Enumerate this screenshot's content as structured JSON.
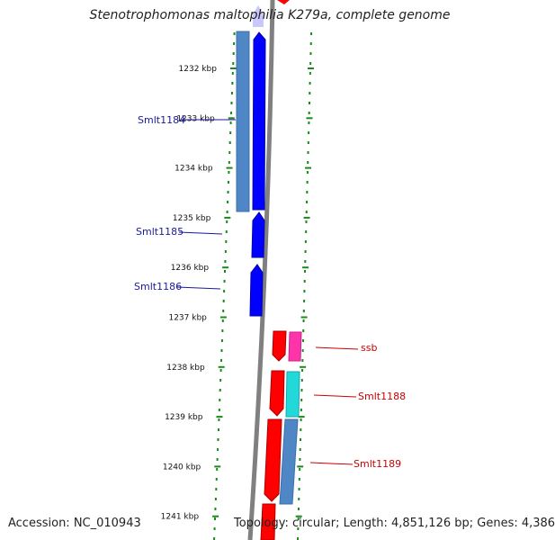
{
  "title": "Stenotrophomonas maltophilia K279a, complete genome",
  "footer": {
    "accession": "Accession: NC_010943",
    "summary": "Topology: circular; Length: 4,851,126 bp; Genes: 4,386"
  },
  "colors": {
    "background": "#ffffff",
    "backbone": "#888888",
    "tick_green": "#1a8a1a",
    "forward_gene": "#0000ff",
    "forward_gene_other": "#4f86c6",
    "reverse_gene": "#ff0000",
    "reverse_gene_pink": "#ff33aa",
    "reverse_gene_cyan": "#22d8d8",
    "reverse_gene_steel": "#4f86c6",
    "label_forward": "#1a1a9a",
    "label_reverse": "#cc0000",
    "top_partial": "#c8c8ff"
  },
  "scale": {
    "unit": "kbp",
    "ticks": [
      "1232 kbp",
      "1233 kbp",
      "1234 kbp",
      "1235 kbp",
      "1236 kbp",
      "1237 kbp",
      "1238 kbp",
      "1239 kbp",
      "1240 kbp",
      "1241 kbp"
    ]
  },
  "genes": [
    {
      "label": "Smlt1184",
      "strand": "+",
      "label_color": "label_forward"
    },
    {
      "label": "Smlt1185",
      "strand": "+",
      "label_color": "label_forward"
    },
    {
      "label": "Smlt1186",
      "strand": "+",
      "label_color": "label_forward"
    },
    {
      "label": "ssb",
      "strand": "-",
      "label_color": "label_reverse"
    },
    {
      "label": "Smlt1188",
      "strand": "-",
      "label_color": "label_reverse"
    },
    {
      "label": "Smlt1189",
      "strand": "-",
      "label_color": "label_reverse"
    }
  ]
}
